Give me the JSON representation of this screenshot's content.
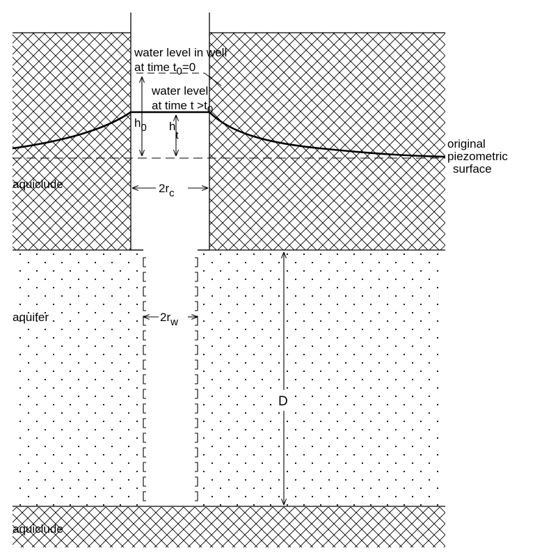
{
  "diagram": {
    "labels": {
      "water_level_in_well": "water level in well",
      "at_time_t0_prefix": "at time t",
      "at_time_t0_sub": "0",
      "at_time_t0_eq": "=0",
      "water_level": "water level",
      "at_time_t_prefix": "at time t >t",
      "at_time_t_sub": "0",
      "h0_main": "h",
      "h0_sub": "0",
      "ht_main": "h",
      "ht_sub": "t",
      "original": "original",
      "piezometric": "piezometric",
      "surface": "surface",
      "aquiclude_top": "aquiclude",
      "rc_main": "2r",
      "rc_sub": "c",
      "aquifer": "aquifer",
      "rw_main": "2r",
      "rw_sub": "w",
      "D": "D",
      "aquiclude_bottom": "aquiclude"
    },
    "colors": {
      "line": "#000000",
      "background": "#ffffff"
    }
  }
}
